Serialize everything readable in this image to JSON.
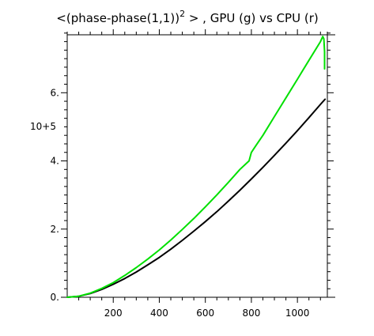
{
  "chart_data": {
    "type": "line",
    "title": {
      "prefix": "<(phase-phase(1,1))",
      "superscript": "2",
      "suffix": " > , GPU (g) vs CPU (r)"
    },
    "xlabel": "",
    "ylabel": "",
    "y_scale_label": "10+5",
    "xlim": [
      0,
      1130
    ],
    "ylim": [
      0,
      7.7
    ],
    "x_ticks": [
      200,
      400,
      600,
      800,
      1000
    ],
    "x_tick_labels": [
      "200",
      "400",
      "600",
      "800",
      "1000"
    ],
    "y_ticks": [
      0,
      2,
      4,
      6
    ],
    "y_tick_labels": [
      "0.",
      "2.",
      "4.",
      "6."
    ],
    "grid": false,
    "series": [
      {
        "color": "#000000",
        "x": [
          0,
          50,
          100,
          150,
          200,
          250,
          300,
          350,
          400,
          450,
          500,
          550,
          600,
          650,
          700,
          750,
          800,
          850,
          900,
          950,
          1000,
          1050,
          1100,
          1120
        ],
        "y": [
          0,
          0.03,
          0.11,
          0.23,
          0.38,
          0.55,
          0.74,
          0.95,
          1.17,
          1.41,
          1.67,
          1.94,
          2.22,
          2.51,
          2.82,
          3.14,
          3.47,
          3.81,
          4.16,
          4.52,
          4.89,
          5.27,
          5.66,
          5.81
        ]
      },
      {
        "color": "#00e000",
        "x": [
          0,
          50,
          100,
          150,
          200,
          250,
          300,
          350,
          400,
          450,
          500,
          550,
          600,
          650,
          700,
          750,
          790,
          800,
          820,
          850,
          900,
          950,
          1000,
          1050,
          1100,
          1110,
          1115,
          1118,
          1118
        ],
        "y": [
          0,
          0.03,
          0.12,
          0.26,
          0.43,
          0.64,
          0.87,
          1.12,
          1.39,
          1.68,
          1.99,
          2.31,
          2.65,
          3.0,
          3.37,
          3.75,
          4.0,
          4.25,
          4.45,
          4.75,
          5.3,
          5.85,
          6.4,
          6.95,
          7.5,
          7.65,
          7.58,
          7.2,
          6.7
        ]
      }
    ]
  }
}
